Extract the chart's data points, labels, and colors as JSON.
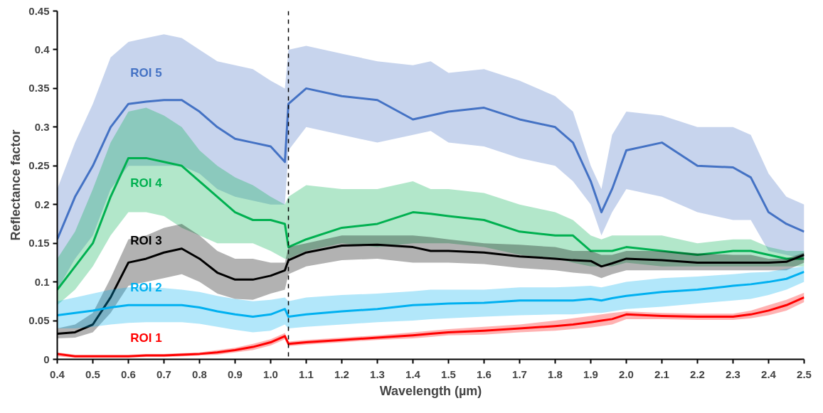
{
  "chart_data": {
    "type": "line",
    "xlabel": "Wavelength (µm)",
    "ylabel": "Reflectance factor",
    "x": [
      0.4,
      0.45,
      0.5,
      0.55,
      0.6,
      0.65,
      0.7,
      0.75,
      0.8,
      0.85,
      0.9,
      0.95,
      1.0,
      1.04,
      1.05,
      1.1,
      1.2,
      1.3,
      1.4,
      1.45,
      1.5,
      1.6,
      1.7,
      1.8,
      1.85,
      1.9,
      1.93,
      1.96,
      2.0,
      2.1,
      2.2,
      2.3,
      2.35,
      2.4,
      2.45,
      2.5
    ],
    "xlim": [
      0.4,
      2.5
    ],
    "xticks": [
      0.4,
      0.5,
      0.6,
      0.7,
      0.8,
      0.9,
      {
        "value": 1.0,
        "label": "1.0"
      },
      1.1,
      1.2,
      1.3,
      1.4,
      1.5,
      1.6,
      1.7,
      1.8,
      1.9,
      {
        "value": 2.0,
        "label": "2.0"
      },
      2.1,
      2.2,
      2.3,
      2.4,
      2.5
    ],
    "ylim": [
      0,
      0.45
    ],
    "yticks": [
      0,
      0.05,
      0.1,
      0.15,
      0.2,
      0.25,
      0.3,
      0.35,
      0.4,
      0.45
    ],
    "grid": false,
    "legend": false,
    "marker": "none",
    "line_style": "solid",
    "ref_lines": [
      {
        "axis": "x",
        "value": 1.05,
        "color": "#000000",
        "line_style": "dashed"
      }
    ],
    "series": [
      {
        "name": "ROI 5",
        "color": "#4472c4",
        "values": [
          0.155,
          0.21,
          0.25,
          0.3,
          0.33,
          0.333,
          0.335,
          0.335,
          0.32,
          0.3,
          0.285,
          0.28,
          0.275,
          0.255,
          0.33,
          0.35,
          0.34,
          0.335,
          0.31,
          0.315,
          0.32,
          0.325,
          0.31,
          0.3,
          0.28,
          0.23,
          0.19,
          0.22,
          0.27,
          0.28,
          0.25,
          0.248,
          0.235,
          0.19,
          0.175,
          0.165
        ],
        "upper": [
          0.22,
          0.28,
          0.33,
          0.39,
          0.41,
          0.415,
          0.42,
          0.415,
          0.4,
          0.385,
          0.38,
          0.375,
          0.36,
          0.35,
          0.4,
          0.405,
          0.395,
          0.385,
          0.38,
          0.385,
          0.37,
          0.375,
          0.36,
          0.34,
          0.32,
          0.25,
          0.22,
          0.29,
          0.32,
          0.315,
          0.3,
          0.3,
          0.29,
          0.24,
          0.21,
          0.2
        ],
        "lower": [
          0.09,
          0.13,
          0.16,
          0.22,
          0.25,
          0.25,
          0.25,
          0.25,
          0.24,
          0.22,
          0.21,
          0.205,
          0.2,
          0.2,
          0.27,
          0.3,
          0.29,
          0.28,
          0.29,
          0.295,
          0.28,
          0.275,
          0.26,
          0.25,
          0.23,
          0.2,
          0.16,
          0.19,
          0.22,
          0.21,
          0.19,
          0.18,
          0.18,
          0.14,
          0.135,
          0.13
        ]
      },
      {
        "name": "ROI 4",
        "color": "#00b050",
        "values": [
          0.09,
          0.12,
          0.15,
          0.21,
          0.26,
          0.26,
          0.255,
          0.25,
          0.23,
          0.21,
          0.19,
          0.18,
          0.18,
          0.175,
          0.145,
          0.155,
          0.17,
          0.175,
          0.19,
          0.188,
          0.185,
          0.18,
          0.165,
          0.16,
          0.16,
          0.14,
          0.14,
          0.14,
          0.145,
          0.14,
          0.135,
          0.14,
          0.14,
          0.135,
          0.13,
          0.13
        ],
        "upper": [
          0.13,
          0.165,
          0.22,
          0.28,
          0.32,
          0.325,
          0.315,
          0.3,
          0.27,
          0.25,
          0.235,
          0.225,
          0.21,
          0.2,
          0.21,
          0.225,
          0.22,
          0.22,
          0.23,
          0.22,
          0.22,
          0.215,
          0.2,
          0.19,
          0.18,
          0.16,
          0.155,
          0.16,
          0.16,
          0.16,
          0.15,
          0.155,
          0.155,
          0.145,
          0.14,
          0.14
        ],
        "lower": [
          0.07,
          0.09,
          0.12,
          0.16,
          0.19,
          0.19,
          0.185,
          0.17,
          0.16,
          0.15,
          0.15,
          0.15,
          0.14,
          0.13,
          0.13,
          0.14,
          0.15,
          0.145,
          0.15,
          0.15,
          0.15,
          0.145,
          0.135,
          0.13,
          0.125,
          0.12,
          0.12,
          0.12,
          0.125,
          0.12,
          0.12,
          0.12,
          0.12,
          0.12,
          0.12,
          0.12
        ]
      },
      {
        "name": "ROI 3",
        "color": "#000000",
        "values": [
          0.033,
          0.035,
          0.045,
          0.08,
          0.125,
          0.13,
          0.138,
          0.143,
          0.13,
          0.112,
          0.103,
          0.103,
          0.108,
          0.115,
          0.128,
          0.138,
          0.147,
          0.148,
          0.145,
          0.14,
          0.14,
          0.138,
          0.133,
          0.13,
          0.128,
          0.127,
          0.12,
          0.124,
          0.13,
          0.128,
          0.125,
          0.125,
          0.125,
          0.125,
          0.126,
          0.135
        ],
        "upper": [
          0.04,
          0.045,
          0.06,
          0.105,
          0.155,
          0.16,
          0.17,
          0.175,
          0.16,
          0.14,
          0.13,
          0.13,
          0.125,
          0.125,
          0.145,
          0.15,
          0.16,
          0.16,
          0.16,
          0.158,
          0.155,
          0.15,
          0.148,
          0.145,
          0.14,
          0.14,
          0.135,
          0.135,
          0.14,
          0.14,
          0.137,
          0.135,
          0.135,
          0.13,
          0.13,
          0.138
        ],
        "lower": [
          0.027,
          0.028,
          0.035,
          0.06,
          0.095,
          0.1,
          0.105,
          0.11,
          0.1,
          0.085,
          0.078,
          0.077,
          0.085,
          0.09,
          0.11,
          0.12,
          0.128,
          0.13,
          0.125,
          0.125,
          0.125,
          0.123,
          0.118,
          0.115,
          0.112,
          0.11,
          0.105,
          0.11,
          0.115,
          0.115,
          0.115,
          0.115,
          0.115,
          0.115,
          0.115,
          0.125
        ]
      },
      {
        "name": "ROI 2",
        "color": "#00b0f0",
        "values": [
          0.057,
          0.06,
          0.063,
          0.067,
          0.07,
          0.07,
          0.07,
          0.07,
          0.067,
          0.062,
          0.058,
          0.055,
          0.058,
          0.065,
          0.055,
          0.058,
          0.062,
          0.065,
          0.07,
          0.071,
          0.072,
          0.073,
          0.076,
          0.076,
          0.076,
          0.078,
          0.076,
          0.079,
          0.082,
          0.087,
          0.09,
          0.095,
          0.097,
          0.1,
          0.104,
          0.113
        ],
        "upper": [
          0.075,
          0.08,
          0.085,
          0.09,
          0.093,
          0.093,
          0.092,
          0.09,
          0.087,
          0.082,
          0.078,
          0.075,
          0.077,
          0.08,
          0.075,
          0.08,
          0.083,
          0.085,
          0.088,
          0.09,
          0.09,
          0.09,
          0.093,
          0.093,
          0.094,
          0.095,
          0.093,
          0.096,
          0.1,
          0.105,
          0.107,
          0.11,
          0.112,
          0.113,
          0.117,
          0.12
        ],
        "lower": [
          0.04,
          0.04,
          0.042,
          0.045,
          0.047,
          0.048,
          0.048,
          0.048,
          0.046,
          0.042,
          0.038,
          0.035,
          0.037,
          0.045,
          0.04,
          0.042,
          0.045,
          0.048,
          0.05,
          0.052,
          0.053,
          0.055,
          0.057,
          0.058,
          0.058,
          0.06,
          0.06,
          0.062,
          0.065,
          0.068,
          0.072,
          0.076,
          0.078,
          0.083,
          0.09,
          0.1
        ]
      },
      {
        "name": "ROI 1",
        "color": "#ff0000",
        "values": [
          0.007,
          0.004,
          0.004,
          0.004,
          0.004,
          0.005,
          0.005,
          0.006,
          0.007,
          0.009,
          0.012,
          0.016,
          0.022,
          0.03,
          0.02,
          0.022,
          0.025,
          0.028,
          0.031,
          0.033,
          0.035,
          0.037,
          0.04,
          0.043,
          0.045,
          0.048,
          0.05,
          0.052,
          0.058,
          0.056,
          0.055,
          0.055,
          0.058,
          0.063,
          0.07,
          0.08
        ],
        "upper": [
          0.009,
          0.006,
          0.006,
          0.006,
          0.006,
          0.007,
          0.007,
          0.008,
          0.009,
          0.012,
          0.015,
          0.02,
          0.026,
          0.034,
          0.023,
          0.025,
          0.028,
          0.031,
          0.035,
          0.037,
          0.039,
          0.042,
          0.045,
          0.05,
          0.053,
          0.056,
          0.058,
          0.06,
          0.062,
          0.06,
          0.059,
          0.059,
          0.063,
          0.07,
          0.077,
          0.086
        ],
        "lower": [
          0.004,
          0.002,
          0.002,
          0.002,
          0.002,
          0.003,
          0.003,
          0.004,
          0.005,
          0.006,
          0.009,
          0.012,
          0.018,
          0.026,
          0.017,
          0.019,
          0.022,
          0.025,
          0.027,
          0.029,
          0.031,
          0.032,
          0.035,
          0.037,
          0.039,
          0.041,
          0.043,
          0.045,
          0.052,
          0.052,
          0.051,
          0.051,
          0.053,
          0.057,
          0.063,
          0.074
        ]
      }
    ]
  }
}
